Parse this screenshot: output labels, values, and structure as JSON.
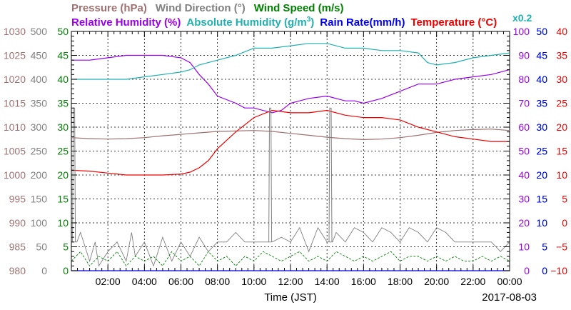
{
  "chart_data": {
    "type": "line",
    "date": "2017-08-03",
    "xlabel": "Time (JST)",
    "x_ticks": [
      "02:00",
      "04:00",
      "06:00",
      "08:00",
      "10:00",
      "12:00",
      "14:00",
      "16:00",
      "18:00",
      "20:00",
      "22:00",
      "00:00"
    ],
    "x_range_hours": [
      0,
      24
    ],
    "grid": true,
    "legend_placement": "top, two rows above plot",
    "left_axes": [
      {
        "name": "Pressure (hPa)",
        "color": "#a07070",
        "range": [
          980,
          1030
        ],
        "ticks": [
          "980",
          "985",
          "990",
          "995",
          "1000",
          "1005",
          "1010",
          "1015",
          "1020",
          "1025",
          "1030"
        ]
      },
      {
        "name": "Wind Direction (°)",
        "color": "#808080",
        "range": [
          0,
          500
        ],
        "ticks": [
          "0",
          "50",
          "100",
          "150",
          "200",
          "250",
          "300",
          "350",
          "400",
          "450",
          "500"
        ]
      },
      {
        "name": "Wind Speed (m/s)",
        "color": "#008000",
        "range": [
          0,
          50
        ],
        "ticks": [
          "0",
          "5",
          "10",
          "15",
          "20",
          "25",
          "30",
          "35",
          "40",
          "45",
          "50"
        ]
      }
    ],
    "right_axes": [
      {
        "name": "Relative Humidity (%)",
        "color": "#9900ee",
        "range": [
          0,
          100
        ],
        "ticks": [
          "0",
          "10",
          "20",
          "30",
          "40",
          "50",
          "60",
          "70",
          "80",
          "90",
          "100"
        ]
      },
      {
        "name": "Absolute Humidity (g/m3) x0.2",
        "color": "#20b0b0",
        "range": [
          0,
          50
        ],
        "ticks": [
          "0",
          "5",
          "10",
          "15",
          "20",
          "25",
          "30",
          "35",
          "40",
          "45",
          "50"
        ]
      },
      {
        "name": "Rain Rate(mm/h)",
        "color": "#0000ee",
        "range": [
          0,
          50
        ],
        "ticks": [
          "0",
          "5",
          "10",
          "15",
          "20",
          "25",
          "30",
          "35",
          "40",
          "45",
          "50"
        ]
      },
      {
        "name": "Temperature (°C)",
        "color": "#ee0000",
        "range": [
          -10,
          40
        ],
        "ticks": [
          "−10",
          "−5",
          "0",
          "5",
          "10",
          "15",
          "20",
          "25",
          "30",
          "35",
          "40"
        ]
      }
    ],
    "series": [
      {
        "name": "Pressure (hPa)",
        "axis": "pressure",
        "color": "#a07070",
        "x": [
          0,
          1,
          2,
          3,
          4,
          5,
          6,
          7,
          8,
          9,
          10,
          11,
          12,
          13,
          14,
          15,
          16,
          17,
          18,
          19,
          20,
          21,
          22,
          23,
          24
        ],
        "y": [
          1007.8,
          1007.6,
          1007.5,
          1007.6,
          1007.8,
          1008.2,
          1008.5,
          1008.8,
          1009.1,
          1009.2,
          1009.3,
          1009.1,
          1008.7,
          1008.3,
          1007.9,
          1007.6,
          1007.4,
          1007.5,
          1007.8,
          1008.3,
          1008.9,
          1009.3,
          1009.5,
          1009.6,
          1009.3
        ]
      },
      {
        "name": "Relative Humidity (%)",
        "axis": "rh",
        "color": "#9900ee",
        "x": [
          0,
          1,
          2,
          3,
          4,
          5,
          6,
          6.5,
          7,
          7.5,
          8,
          9,
          9.5,
          10,
          11,
          11.5,
          12,
          13,
          14,
          15,
          15.5,
          16,
          17,
          18,
          19,
          20,
          21,
          22,
          23,
          24
        ],
        "y": [
          88,
          88,
          89,
          90,
          90,
          90,
          89,
          87,
          82,
          78,
          73,
          70,
          68,
          68,
          66,
          67,
          70,
          72,
          73,
          71,
          71,
          70,
          72,
          75,
          78,
          78,
          80,
          81,
          82,
          84
        ]
      },
      {
        "name": "Absolute Humidity (g/m3) x0.2",
        "axis": "ah",
        "color": "#20b0b0",
        "x": [
          0,
          1,
          2,
          3,
          4,
          5,
          6,
          6.5,
          7,
          8,
          9,
          10,
          11,
          12,
          13,
          14,
          15,
          16,
          17,
          18,
          19,
          19.5,
          20,
          21,
          22,
          23,
          24
        ],
        "y": [
          40,
          40,
          40,
          40,
          40.5,
          41,
          41.5,
          42,
          43,
          44,
          45,
          46.5,
          46.5,
          47,
          47.5,
          47.5,
          46.5,
          46.5,
          46,
          46,
          45.5,
          43.5,
          43,
          43.5,
          44.5,
          45,
          45.5
        ]
      },
      {
        "name": "Temperature (°C)",
        "axis": "temp",
        "color": "#ee0000",
        "x": [
          0,
          1,
          2,
          3,
          4,
          5,
          6,
          6.5,
          7,
          7.5,
          8,
          9,
          10,
          11,
          12,
          13,
          14,
          15,
          16,
          17,
          18,
          19,
          20,
          21,
          22,
          23,
          24
        ],
        "y": [
          11,
          10.8,
          10.4,
          10,
          10,
          10,
          10.2,
          10.6,
          11.5,
          13,
          15.5,
          19,
          22,
          23.5,
          23,
          23,
          23.5,
          22.5,
          22,
          22,
          21.5,
          20,
          19,
          18,
          17.5,
          17,
          17
        ]
      },
      {
        "name": "Wind Direction (°)",
        "axis": "wdir",
        "color": "#808080",
        "x": [
          0,
          0.2,
          0.3,
          0.5,
          1,
          1.3,
          1.5,
          2,
          2.5,
          3,
          3.3,
          3.5,
          4,
          4.5,
          5,
          5.5,
          6,
          6.5,
          7,
          7.5,
          8,
          8.5,
          9,
          9.5,
          10,
          10.2,
          10.5,
          10.7,
          10.8,
          10.9,
          11,
          11.5,
          12,
          12.5,
          13,
          13.5,
          14,
          14.1,
          14.2,
          14.3,
          14.5,
          15,
          15.5,
          16,
          16.5,
          17,
          17.5,
          18,
          18.5,
          19,
          19.5,
          20,
          20.5,
          21,
          21.5,
          22,
          22.5,
          23,
          23.5,
          24
        ],
        "y": [
          60,
          60,
          60,
          80,
          20,
          60,
          10,
          40,
          60,
          20,
          80,
          30,
          60,
          10,
          70,
          20,
          60,
          30,
          70,
          40,
          60,
          60,
          80,
          60,
          60,
          60,
          60,
          60,
          60,
          60,
          60,
          70,
          60,
          90,
          40,
          90,
          60,
          60,
          60,
          60,
          80,
          60,
          90,
          80,
          60,
          90,
          80,
          60,
          90,
          80,
          60,
          90,
          80,
          60,
          60,
          60,
          60,
          60,
          40,
          60
        ]
      },
      {
        "name": "Wind Speed (m/s)",
        "axis": "wspd",
        "color": "#008000",
        "x": [
          0,
          0.5,
          1,
          1.5,
          2,
          2.5,
          3,
          3.5,
          4,
          4.5,
          5,
          5.5,
          6,
          6.5,
          7,
          7.5,
          8,
          8.5,
          9,
          9.5,
          10,
          10.5,
          11,
          11.5,
          12,
          12.5,
          13,
          13.5,
          14,
          14.5,
          15,
          15.5,
          16,
          16.5,
          17,
          17.5,
          18,
          18.5,
          19,
          19.5,
          20,
          20.5,
          21,
          21.5,
          22,
          22.5,
          23,
          23.5,
          24
        ],
        "y": [
          2,
          4,
          1,
          3,
          2,
          4,
          1,
          3,
          2,
          3,
          1,
          4,
          2,
          3,
          1,
          4,
          2,
          3,
          1,
          3,
          2,
          4,
          3,
          2,
          3,
          4,
          2,
          3,
          2,
          4,
          3,
          2,
          3,
          2,
          3,
          4,
          2,
          3,
          3,
          2,
          3,
          2,
          3,
          2,
          2,
          3,
          2,
          3,
          2
        ]
      },
      {
        "name": "Rain Rate(mm/h)",
        "axis": "rain",
        "color": "#0000ee",
        "x": [
          0,
          24
        ],
        "y": [
          0,
          0
        ]
      }
    ],
    "spikes": [
      {
        "axis": "wdir",
        "x": 0.1,
        "y": 340,
        "color": "#808080"
      },
      {
        "axis": "wdir",
        "x": 10.85,
        "y": 340,
        "color": "#808080"
      },
      {
        "axis": "wdir",
        "x": 14.15,
        "y": 340,
        "color": "#808080"
      }
    ]
  },
  "legend": {
    "row1": [
      {
        "text": "Pressure (hPa)",
        "color": "#a07070"
      },
      {
        "text": "Wind Direction (°)",
        "color": "#808080"
      },
      {
        "text": "Wind Speed (m/s)",
        "color": "#008000"
      }
    ],
    "row2": [
      {
        "text": "Relative Humidity (%)",
        "color": "#9900ee"
      },
      {
        "text": "Absolute Humidity (g/m",
        "sup": "3",
        "tail": ")",
        "color": "#20b0b0"
      },
      {
        "text": "Rain Rate(mm/h)",
        "color": "#0000ee"
      },
      {
        "text": "Temperature (°C)",
        "color": "#ee0000"
      }
    ],
    "ah_scale_note": {
      "text": "x0.2",
      "color": "#20b0b0"
    }
  }
}
